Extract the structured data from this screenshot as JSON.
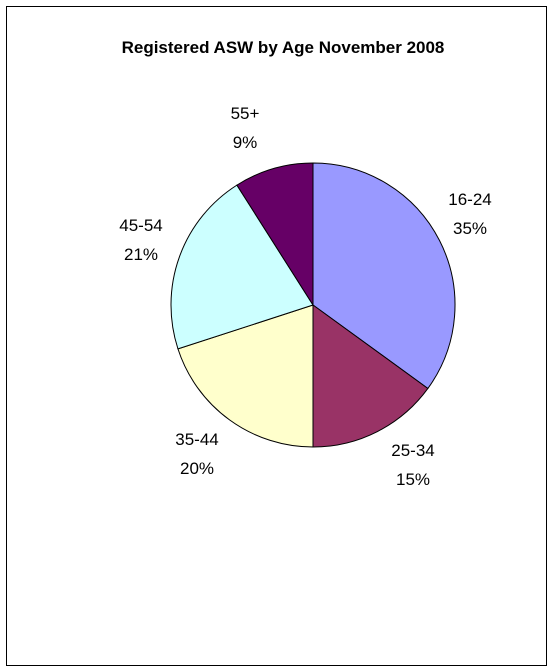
{
  "chart_data": {
    "type": "pie",
    "title": "Registered ASW by Age November 2008",
    "slices": [
      {
        "label": "16-24",
        "value": 35,
        "value_label": "35%",
        "color": "#9999FF"
      },
      {
        "label": "25-34",
        "value": 15,
        "value_label": "15%",
        "color": "#993366"
      },
      {
        "label": "35-44",
        "value": 20,
        "value_label": "20%",
        "color": "#FFFFCC"
      },
      {
        "label": "45-54",
        "value": 21,
        "value_label": "21%",
        "color": "#CCFFFF"
      },
      {
        "label": "55+",
        "value": 9,
        "value_label": "9%",
        "color": "#660066"
      }
    ],
    "legend": "none"
  }
}
